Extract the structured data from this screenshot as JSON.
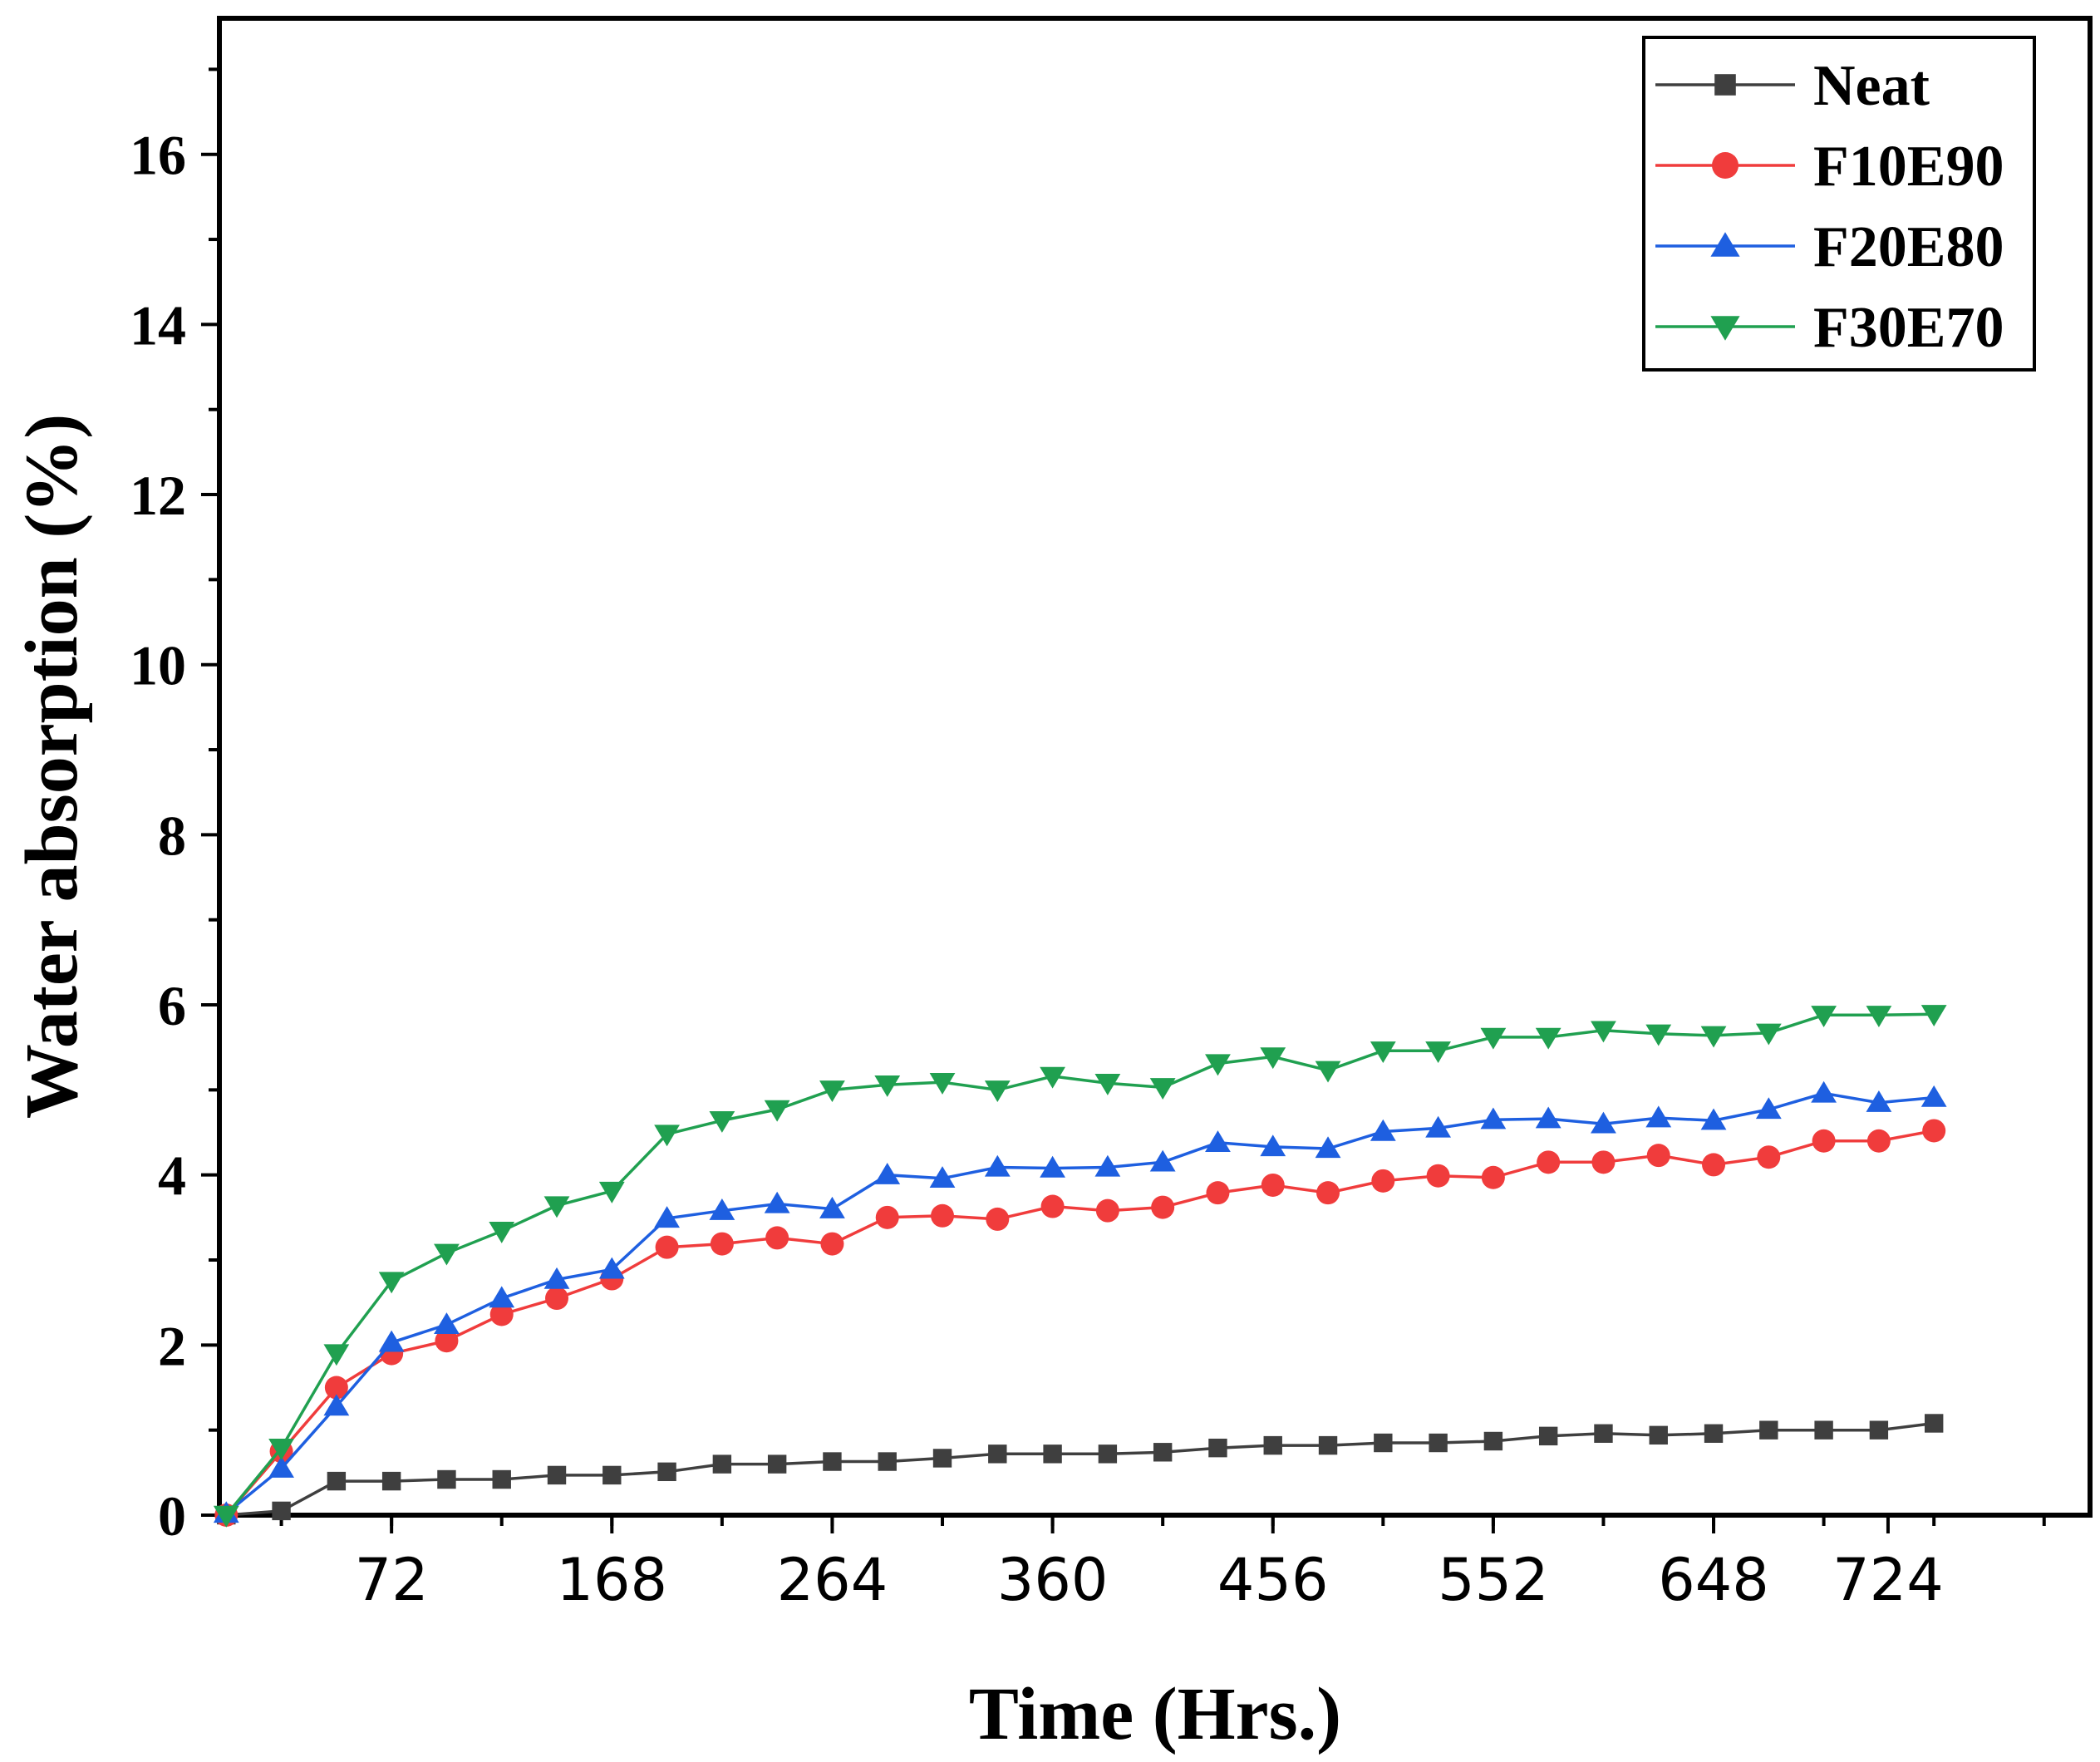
{
  "chart_data": {
    "type": "line",
    "title": "",
    "xlabel": "Time (Hrs.)",
    "ylabel": "Water absorption (%)",
    "xlim": [
      -3,
      812
    ],
    "ylim": [
      0,
      17.6
    ],
    "xticks": [
      72,
      168,
      264,
      360,
      456,
      552,
      648,
      724
    ],
    "xtick_labels": [
      "72",
      "168",
      "264",
      "360",
      "456",
      "552",
      "648",
      "724"
    ],
    "yticks": [
      0,
      2,
      4,
      6,
      8,
      10,
      12,
      14,
      16
    ],
    "ytick_labels": [
      "0",
      "2",
      "4",
      "6",
      "8",
      "10",
      "12",
      "14",
      "16"
    ],
    "grid": false,
    "legend_position": "top-right",
    "x": [
      0,
      24,
      48,
      72,
      96,
      120,
      144,
      168,
      192,
      216,
      240,
      264,
      288,
      312,
      336,
      360,
      384,
      408,
      432,
      456,
      480,
      504,
      528,
      552,
      576,
      600,
      624,
      648,
      672,
      696,
      720,
      744
    ],
    "series": [
      {
        "name": "Neat",
        "color": "#3f3f3f",
        "marker": "square",
        "values": [
          0,
          0.05,
          0.4,
          0.4,
          0.42,
          0.42,
          0.47,
          0.47,
          0.51,
          0.6,
          0.6,
          0.63,
          0.63,
          0.67,
          0.72,
          0.72,
          0.72,
          0.74,
          0.79,
          0.82,
          0.82,
          0.85,
          0.85,
          0.87,
          0.93,
          0.96,
          0.94,
          0.96,
          1.0,
          1.0,
          1.0,
          1.08
        ]
      },
      {
        "name": "F10E90",
        "color": "#f03c3c",
        "marker": "circle",
        "values": [
          0,
          0.75,
          1.5,
          1.9,
          2.05,
          2.36,
          2.55,
          2.78,
          3.15,
          3.19,
          3.26,
          3.19,
          3.5,
          3.52,
          3.48,
          3.63,
          3.58,
          3.62,
          3.79,
          3.88,
          3.79,
          3.93,
          3.99,
          3.97,
          4.15,
          4.15,
          4.23,
          4.12,
          4.21,
          4.4,
          4.4,
          4.52
        ]
      },
      {
        "name": "F20E80",
        "color": "#1e5fe0",
        "marker": "triangle-up",
        "values": [
          0.02,
          0.55,
          1.28,
          2.03,
          2.24,
          2.55,
          2.77,
          2.89,
          3.49,
          3.58,
          3.66,
          3.6,
          4.0,
          3.96,
          4.09,
          4.08,
          4.09,
          4.15,
          4.38,
          4.33,
          4.31,
          4.51,
          4.55,
          4.65,
          4.66,
          4.6,
          4.67,
          4.64,
          4.77,
          4.96,
          4.85,
          4.91
        ]
      },
      {
        "name": "F30E70",
        "color": "#20a050",
        "marker": "triangle-down",
        "values": [
          0,
          0.79,
          1.9,
          2.75,
          3.08,
          3.34,
          3.64,
          3.81,
          4.48,
          4.64,
          4.77,
          5.0,
          5.06,
          5.09,
          5.0,
          5.16,
          5.08,
          5.03,
          5.31,
          5.39,
          5.23,
          5.46,
          5.46,
          5.62,
          5.62,
          5.7,
          5.66,
          5.64,
          5.67,
          5.88,
          5.88,
          5.89
        ]
      }
    ]
  }
}
